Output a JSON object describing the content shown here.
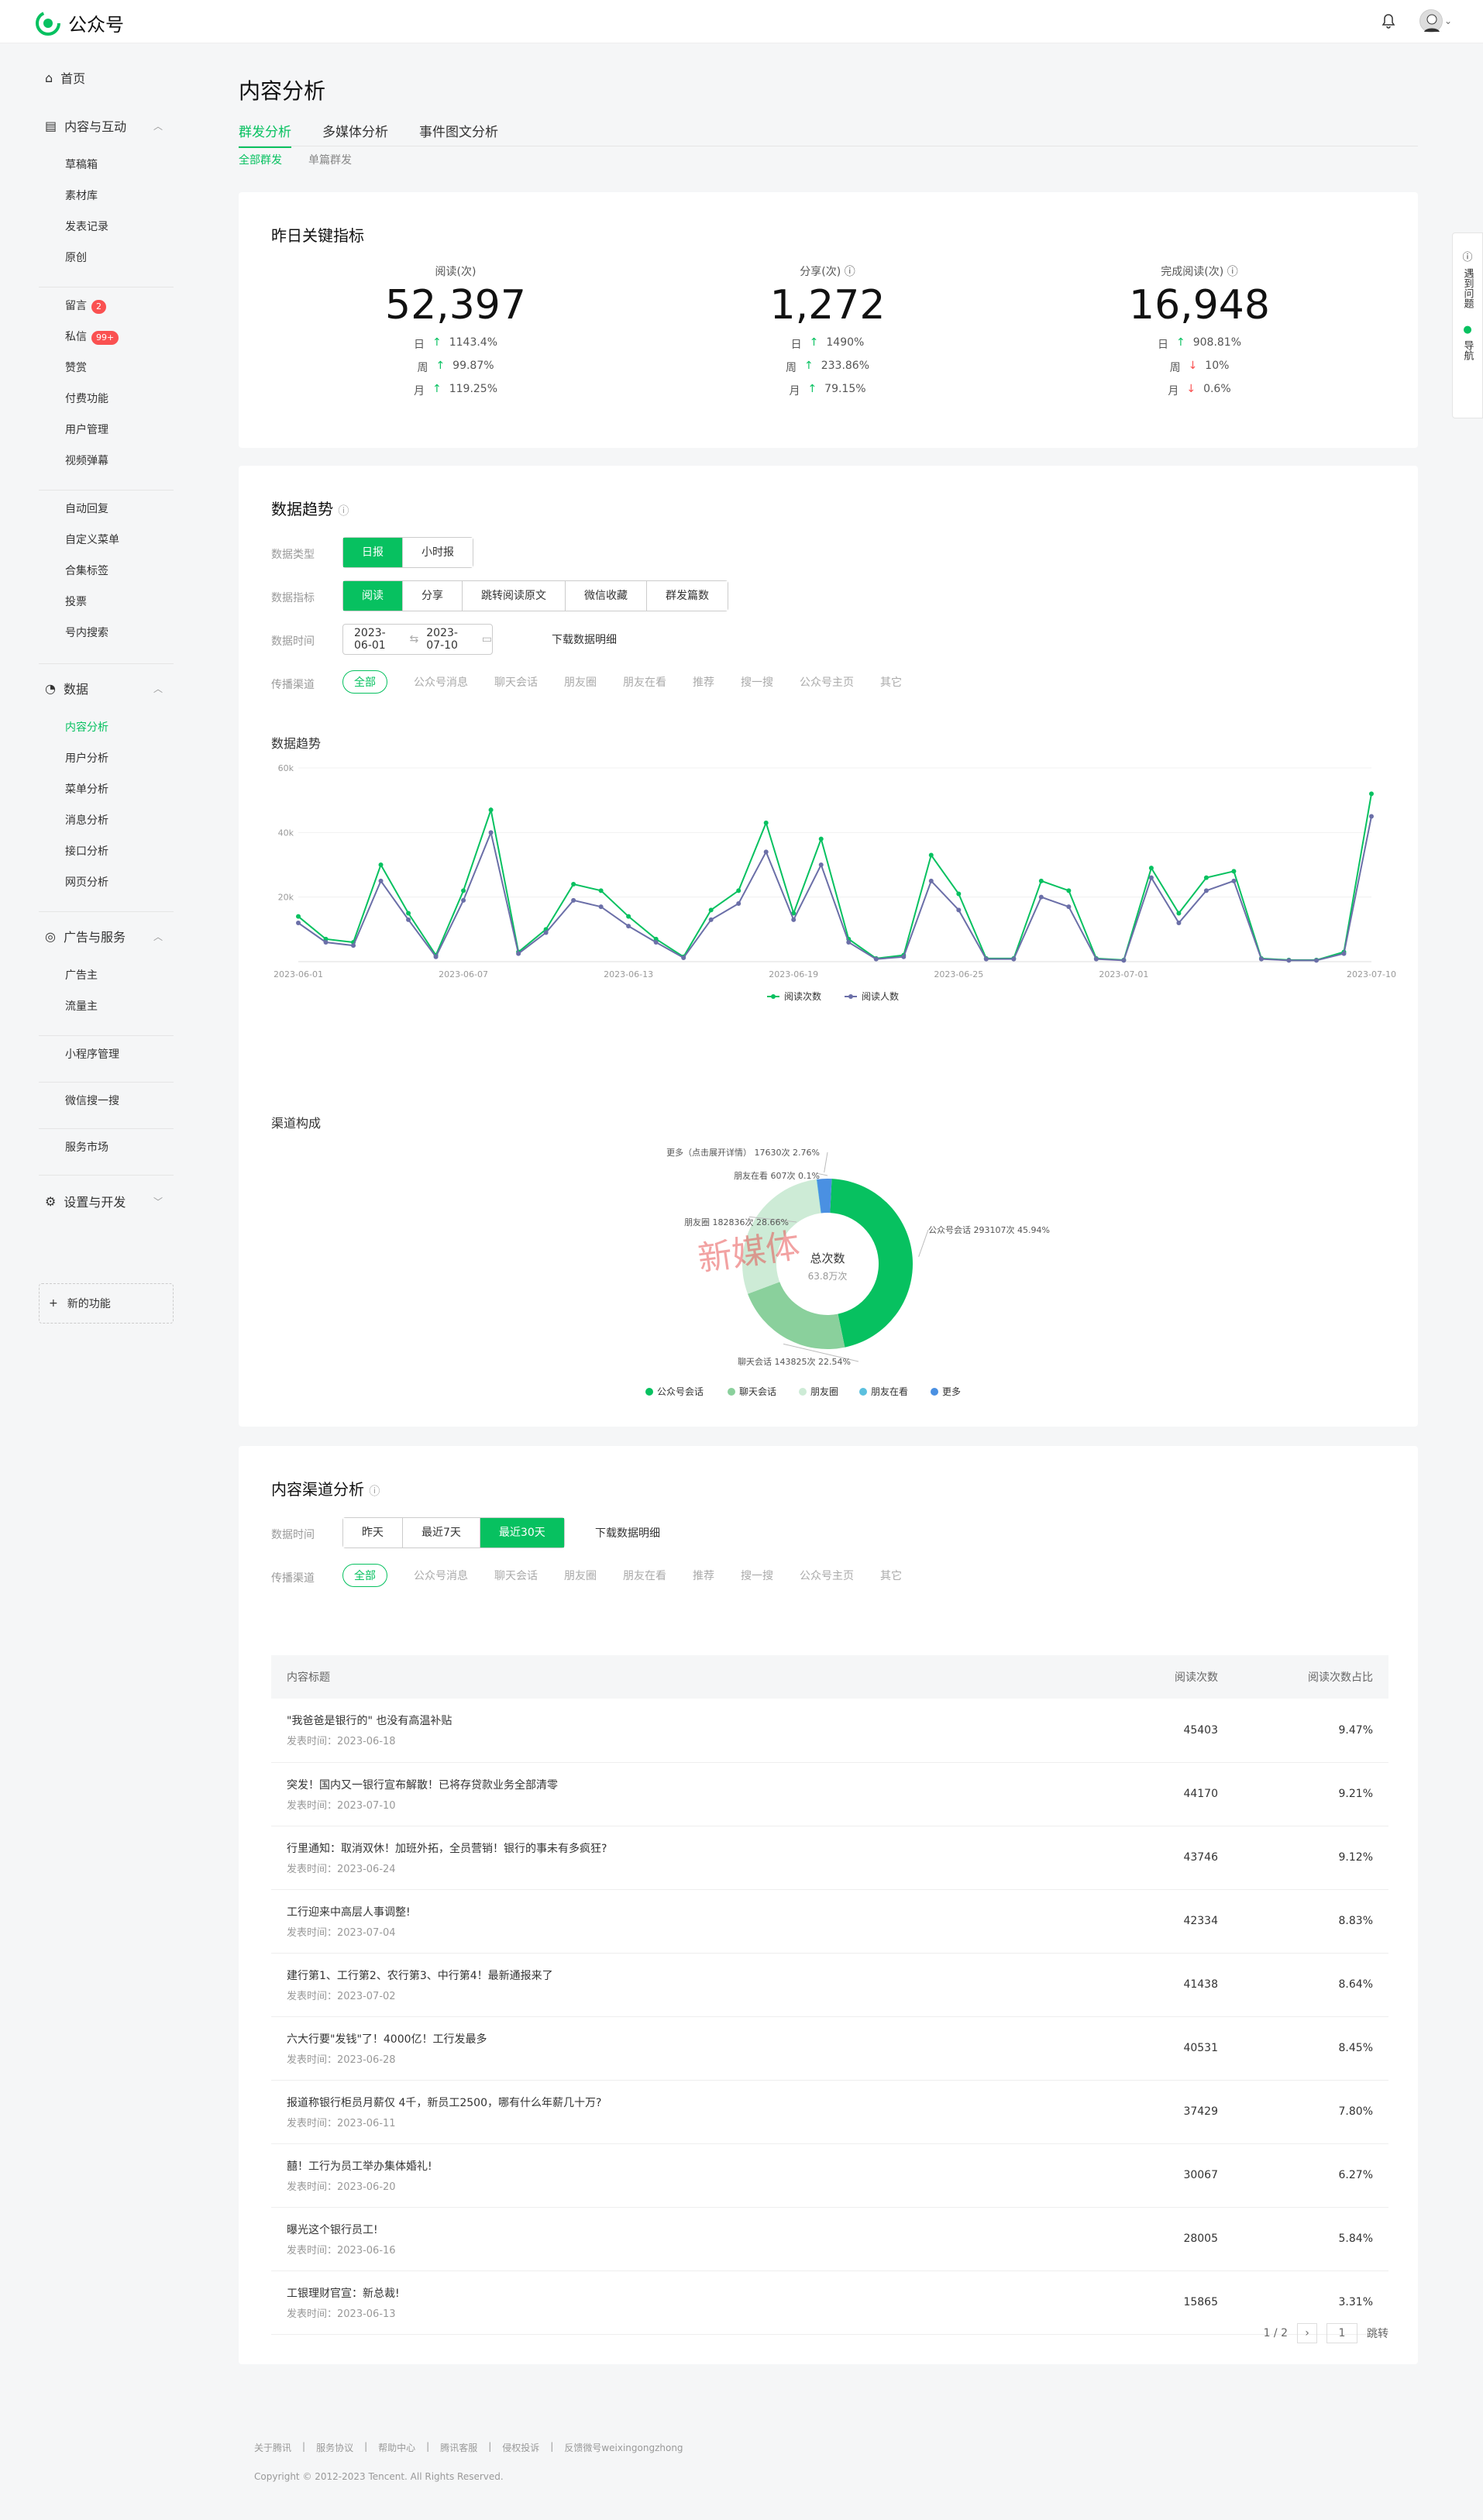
{
  "app": {
    "name": "公众号"
  },
  "sidebar": {
    "home": "首页",
    "content_interact": "内容与互动",
    "content_items": [
      "草稿箱",
      "素材库",
      "发表记录",
      "原创"
    ],
    "interact_items": [
      "留言",
      "私信",
      "赞赏",
      "付费功能",
      "用户管理",
      "视频弹幕"
    ],
    "msg_badge": "2",
    "dm_badge": "99+",
    "func_items": [
      "自动回复",
      "自定义菜单",
      "合集标签",
      "投票",
      "号内搜索"
    ],
    "data": "数据",
    "data_items": [
      "内容分析",
      "用户分析",
      "菜单分析",
      "消息分析",
      "接口分析",
      "网页分析"
    ],
    "ads": "广告与服务",
    "ads_items": [
      "广告主",
      "流量主"
    ],
    "mini": "小程序管理",
    "search": "微信搜一搜",
    "market": "服务市场",
    "settings": "设置与开发",
    "new_func": "新的功能"
  },
  "page": {
    "title": "内容分析",
    "tabs": [
      "群发分析",
      "多媒体分析",
      "事件图文分析"
    ],
    "subtabs": [
      "全部群发",
      "单篇群发"
    ]
  },
  "kpi": {
    "title": "昨日关键指标",
    "items": [
      {
        "label": "阅读(次)",
        "value": "52,397",
        "rows": [
          {
            "p": "日",
            "v": "1143.4%",
            "dir": "up"
          },
          {
            "p": "周",
            "v": "99.87%",
            "dir": "up"
          },
          {
            "p": "月",
            "v": "119.25%",
            "dir": "up"
          }
        ]
      },
      {
        "label": "分享(次)",
        "value": "1,272",
        "rows": [
          {
            "p": "日",
            "v": "1490%",
            "dir": "up"
          },
          {
            "p": "周",
            "v": "233.86%",
            "dir": "up"
          },
          {
            "p": "月",
            "v": "79.15%",
            "dir": "up"
          }
        ]
      },
      {
        "label": "完成阅读(次)",
        "value": "16,948",
        "rows": [
          {
            "p": "日",
            "v": "908.81%",
            "dir": "up"
          },
          {
            "p": "周",
            "v": "10%",
            "dir": "down"
          },
          {
            "p": "月",
            "v": "0.6%",
            "dir": "down"
          }
        ]
      }
    ]
  },
  "trend": {
    "title": "数据趋势",
    "type_label": "数据类型",
    "types": [
      "日报",
      "小时报"
    ],
    "metric_label": "数据指标",
    "metrics": [
      "阅读",
      "分享",
      "跳转阅读原文",
      "微信收藏",
      "群发篇数"
    ],
    "time_label": "数据时间",
    "date_from": "2023-06-01",
    "date_to": "2023-07-10",
    "download": "下载数据明细",
    "channel_label": "传播渠道",
    "channels": [
      "全部",
      "公众号消息",
      "聊天会话",
      "朋友圈",
      "朋友在看",
      "推荐",
      "搜一搜",
      "公众号主页",
      "其它"
    ],
    "chart_title": "数据趋势",
    "composition_title": "渠道构成"
  },
  "chart_data": [
    {
      "type": "line",
      "title": "数据趋势",
      "x": [
        "2023-06-01",
        "2023-06-02",
        "2023-06-03",
        "2023-06-04",
        "2023-06-05",
        "2023-06-06",
        "2023-06-07",
        "2023-06-08",
        "2023-06-09",
        "2023-06-10",
        "2023-06-11",
        "2023-06-12",
        "2023-06-13",
        "2023-06-14",
        "2023-06-15",
        "2023-06-16",
        "2023-06-17",
        "2023-06-18",
        "2023-06-19",
        "2023-06-20",
        "2023-06-21",
        "2023-06-22",
        "2023-06-23",
        "2023-06-24",
        "2023-06-25",
        "2023-06-26",
        "2023-06-27",
        "2023-06-28",
        "2023-06-29",
        "2023-06-30",
        "2023-07-01",
        "2023-07-02",
        "2023-07-03",
        "2023-07-04",
        "2023-07-05",
        "2023-07-06",
        "2023-07-07",
        "2023-07-08",
        "2023-07-09",
        "2023-07-10"
      ],
      "xticks": [
        "2023-06-01",
        "2023-06-07",
        "2023-06-13",
        "2023-06-19",
        "2023-06-25",
        "2023-07-01",
        "2023-07-10"
      ],
      "yticks": [
        "20k",
        "40k",
        "60k"
      ],
      "ylim": [
        0,
        60000
      ],
      "series": [
        {
          "name": "阅读次数",
          "color": "#07c160",
          "values": [
            14000,
            7000,
            6000,
            30000,
            15000,
            2000,
            22000,
            47000,
            3000,
            10000,
            24000,
            22000,
            14000,
            7000,
            1500,
            16000,
            22000,
            43000,
            15000,
            38000,
            7000,
            1000,
            2000,
            33000,
            21000,
            1000,
            1000,
            25000,
            22000,
            1000,
            500,
            29000,
            15000,
            26000,
            28000,
            1000,
            500,
            500,
            3000,
            52000
          ]
        },
        {
          "name": "阅读人数",
          "color": "#6b6fa8",
          "values": [
            12000,
            6000,
            5000,
            25000,
            13000,
            1500,
            19000,
            40000,
            2500,
            9000,
            19000,
            17000,
            11000,
            6000,
            1200,
            13000,
            18000,
            34000,
            13000,
            30000,
            6000,
            800,
            1500,
            25000,
            16000,
            800,
            800,
            20000,
            17000,
            800,
            400,
            26000,
            12000,
            22000,
            25000,
            800,
            400,
            400,
            2500,
            45000
          ]
        }
      ]
    },
    {
      "type": "pie",
      "title": "渠道构成",
      "center_label": "总次数",
      "center_value": "63.8万次",
      "slices": [
        {
          "name": "公众号会话",
          "value": 293107,
          "pct": "45.94%",
          "color": "#07c160",
          "label": "公众号会话 293107次 45.94%"
        },
        {
          "name": "聊天会话",
          "value": 143825,
          "pct": "22.54%",
          "color": "#8ad09c",
          "label": "聊天会话 143825次 22.54%"
        },
        {
          "name": "朋友圈",
          "value": 182836,
          "pct": "28.66%",
          "color": "#cdebd6",
          "label": "朋友圈 182836次 28.66%"
        },
        {
          "name": "朋友在看",
          "value": 607,
          "pct": "0.1%",
          "color": "#5bc0de",
          "label": "朋友在看 607次 0.1%"
        },
        {
          "name": "更多",
          "value": 17630,
          "pct": "2.76%",
          "color": "#4a90e2",
          "label": "更多（点击展开详情） 17630次 2.76%"
        }
      ]
    }
  ],
  "channel": {
    "title": "内容渠道分析",
    "time_label": "数据时间",
    "ranges": [
      "昨天",
      "最近7天",
      "最近30天"
    ],
    "download": "下载数据明细",
    "channel_label": "传播渠道",
    "channels": [
      "全部",
      "公众号消息",
      "聊天会话",
      "朋友圈",
      "朋友在看",
      "推荐",
      "搜一搜",
      "公众号主页",
      "其它"
    ],
    "cols": [
      "内容标题",
      "阅读次数",
      "阅读次数占比"
    ],
    "date_prefix": "发表时间：",
    "rows": [
      {
        "title": "\"我爸爸是银行的\" 也没有高温补贴",
        "date": "2023-06-18",
        "reads": "45403",
        "pct": "9.47%"
      },
      {
        "title": "突发！国内又一银行宣布解散！已将存贷款业务全部清零",
        "date": "2023-07-10",
        "reads": "44170",
        "pct": "9.21%"
      },
      {
        "title": "行里通知：取消双休！加班外拓，全员营销！银行的事未有多疯狂?",
        "date": "2023-06-24",
        "reads": "43746",
        "pct": "9.12%"
      },
      {
        "title": "工行迎来中高层人事调整!",
        "date": "2023-07-04",
        "reads": "42334",
        "pct": "8.83%"
      },
      {
        "title": "建行第1、工行第2、农行第3、中行第4！最新通报来了",
        "date": "2023-07-02",
        "reads": "41438",
        "pct": "8.64%"
      },
      {
        "title": "六大行要\"发钱\"了！4000亿！工行发最多",
        "date": "2023-06-28",
        "reads": "40531",
        "pct": "8.45%"
      },
      {
        "title": "报道称银行柜员月薪仅 4千，新员工2500，哪有什么年薪几十万?",
        "date": "2023-06-11",
        "reads": "37429",
        "pct": "7.80%"
      },
      {
        "title": "囍！工行为员工举办集体婚礼!",
        "date": "2023-06-20",
        "reads": "30067",
        "pct": "6.27%"
      },
      {
        "title": "曝光这个银行员工!",
        "date": "2023-06-16",
        "reads": "28005",
        "pct": "5.84%"
      },
      {
        "title": "工银理财官宣：新总裁!",
        "date": "2023-06-13",
        "reads": "15865",
        "pct": "3.31%"
      }
    ],
    "pager": "1 / 2",
    "page_input": "1",
    "goto": "跳转"
  },
  "footer": {
    "links": [
      "关于腾讯",
      "服务协议",
      "帮助中心",
      "腾讯客服",
      "侵权投诉",
      "反馈微号weixingongzhong"
    ],
    "copyright": "Copyright © 2012-2023 Tencent. All Rights Reserved."
  },
  "help": {
    "ask": "遇到问题",
    "guide": "导航"
  },
  "watermark": "新媒体"
}
